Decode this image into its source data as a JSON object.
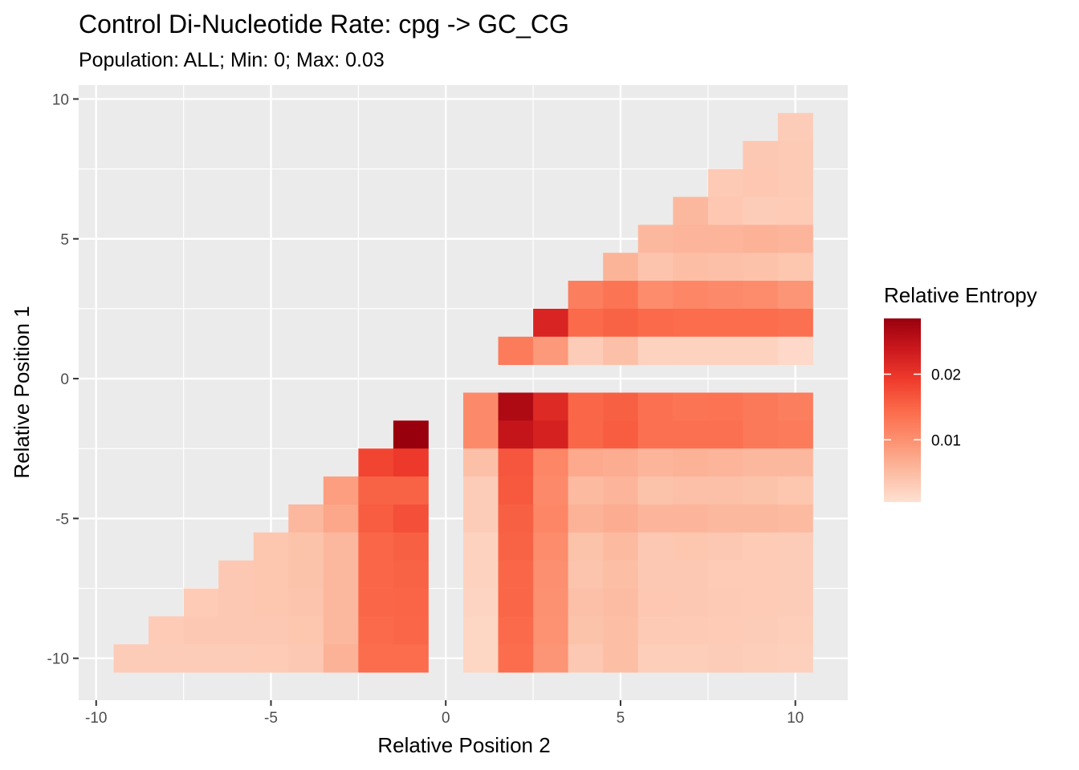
{
  "chart_data": {
    "type": "heatmap",
    "title": "Control Di-Nucleotide Rate: cpg -> GC_CG",
    "subtitle": "Population: ALL; Min: 0; Max: 0.03",
    "xlabel": "Relative Position 2",
    "ylabel": "Relative Position 1",
    "xlim": [
      -10.5,
      11.5
    ],
    "ylim": [
      -11.5,
      10.5
    ],
    "x_ticks": [
      -10,
      -5,
      0,
      5,
      10
    ],
    "x_tick_labels": [
      "-10",
      "-5",
      "0",
      "5",
      "10"
    ],
    "y_ticks": [
      -10,
      -5,
      0,
      5,
      10
    ],
    "y_tick_labels": [
      "-10",
      "-5",
      "0",
      "5",
      "10"
    ],
    "grid": true,
    "legend": {
      "title": "Relative Entropy",
      "position": "right",
      "min": 0.0005,
      "max": 0.0285,
      "breaks": [
        0.01,
        0.02
      ],
      "break_labels": [
        "0.01",
        "0.02"
      ],
      "colors": [
        "#fee0d2",
        "#fcbba1",
        "#fc9272",
        "#fb6a4a",
        "#ef3b2c",
        "#cb181d",
        "#99000d"
      ]
    },
    "x": [
      -9,
      -8,
      -7,
      -6,
      -5,
      -4,
      -3,
      -2,
      -1,
      1,
      2,
      3,
      4,
      5,
      6,
      7,
      8,
      9,
      10
    ],
    "y": [
      9,
      8,
      7,
      6,
      5,
      4,
      3,
      2,
      1,
      -1,
      -2,
      -3,
      -4,
      -5,
      -6,
      -7,
      -8,
      -9,
      -10
    ],
    "z": [
      [
        null,
        null,
        null,
        null,
        null,
        null,
        null,
        null,
        null,
        null,
        null,
        null,
        null,
        null,
        null,
        null,
        null,
        null,
        0.003
      ],
      [
        null,
        null,
        null,
        null,
        null,
        null,
        null,
        null,
        null,
        null,
        null,
        null,
        null,
        null,
        null,
        null,
        null,
        0.0035,
        0.0033
      ],
      [
        null,
        null,
        null,
        null,
        null,
        null,
        null,
        null,
        null,
        null,
        null,
        null,
        null,
        null,
        null,
        null,
        0.0033,
        0.0036,
        0.0033
      ],
      [
        null,
        null,
        null,
        null,
        null,
        null,
        null,
        null,
        null,
        null,
        null,
        null,
        null,
        null,
        null,
        0.0055,
        0.0036,
        0.003,
        0.0032
      ],
      [
        null,
        null,
        null,
        null,
        null,
        null,
        null,
        null,
        null,
        null,
        null,
        null,
        null,
        null,
        0.0055,
        0.0058,
        0.0058,
        0.0062,
        0.0058
      ],
      [
        null,
        null,
        null,
        null,
        null,
        null,
        null,
        null,
        null,
        null,
        null,
        null,
        null,
        0.006,
        0.004,
        0.0048,
        0.0046,
        0.0043,
        0.0038
      ],
      [
        null,
        null,
        null,
        null,
        null,
        null,
        null,
        null,
        null,
        null,
        null,
        null,
        0.0122,
        0.0132,
        0.0105,
        0.0112,
        0.0108,
        0.0105,
        0.0095
      ],
      [
        null,
        null,
        null,
        null,
        null,
        null,
        null,
        null,
        null,
        null,
        null,
        0.0222,
        0.0145,
        0.0152,
        0.0145,
        0.0142,
        0.0142,
        0.0142,
        0.0138
      ],
      [
        null,
        null,
        null,
        null,
        null,
        null,
        null,
        null,
        null,
        null,
        0.0125,
        0.009,
        0.003,
        0.0045,
        0.0022,
        0.0022,
        0.0022,
        0.0022,
        0.0015
      ],
      [
        null,
        null,
        null,
        null,
        null,
        null,
        null,
        null,
        null,
        0.0108,
        0.0265,
        0.0215,
        0.0148,
        0.0155,
        0.0138,
        0.0132,
        0.0135,
        0.0128,
        0.0122
      ],
      [
        null,
        null,
        null,
        null,
        null,
        null,
        null,
        null,
        0.0285,
        0.0108,
        0.0245,
        0.0225,
        0.0148,
        0.0158,
        0.0138,
        0.0138,
        0.0138,
        0.0128,
        0.0125
      ],
      [
        null,
        null,
        null,
        null,
        null,
        null,
        null,
        0.0182,
        0.0195,
        0.0045,
        0.0165,
        0.0112,
        0.0072,
        0.0068,
        0.0058,
        0.0062,
        0.0058,
        0.0055,
        0.0055
      ],
      [
        null,
        null,
        null,
        null,
        null,
        null,
        0.0085,
        0.0152,
        0.0152,
        0.003,
        0.0162,
        0.0108,
        0.0052,
        0.0058,
        0.0042,
        0.0045,
        0.0045,
        0.0042,
        0.0038
      ],
      [
        null,
        null,
        null,
        null,
        null,
        0.0055,
        0.0075,
        0.0158,
        0.0172,
        0.003,
        0.0155,
        0.0112,
        0.0062,
        0.0068,
        0.0058,
        0.0058,
        0.0055,
        0.0055,
        0.0052
      ],
      [
        null,
        null,
        null,
        null,
        0.0038,
        0.0042,
        0.0055,
        0.0148,
        0.0155,
        0.0022,
        0.0152,
        0.0105,
        0.0042,
        0.0052,
        0.0035,
        0.0038,
        0.0035,
        0.0032,
        0.003
      ],
      [
        null,
        null,
        null,
        0.0035,
        0.0038,
        0.0042,
        0.0055,
        0.0148,
        0.0152,
        0.0022,
        0.0148,
        0.0102,
        0.004,
        0.0048,
        0.0035,
        0.0035,
        0.0032,
        0.0032,
        0.003
      ],
      [
        null,
        null,
        0.0032,
        0.0035,
        0.0038,
        0.004,
        0.0055,
        0.0148,
        0.015,
        0.002,
        0.0148,
        0.01,
        0.0045,
        0.005,
        0.0036,
        0.0035,
        0.0033,
        0.0032,
        0.003
      ],
      [
        null,
        0.0032,
        0.0035,
        0.0035,
        0.0035,
        0.0038,
        0.0055,
        0.0145,
        0.0148,
        0.0018,
        0.0145,
        0.0098,
        0.0042,
        0.0048,
        0.0033,
        0.0033,
        0.0032,
        0.003,
        0.0028
      ],
      [
        0.003,
        0.003,
        0.003,
        0.003,
        0.0032,
        0.0035,
        0.0062,
        0.0142,
        0.0142,
        0.0018,
        0.0142,
        0.0095,
        0.0035,
        0.0048,
        0.0028,
        0.0028,
        0.003,
        0.0028,
        0.0025
      ]
    ]
  }
}
